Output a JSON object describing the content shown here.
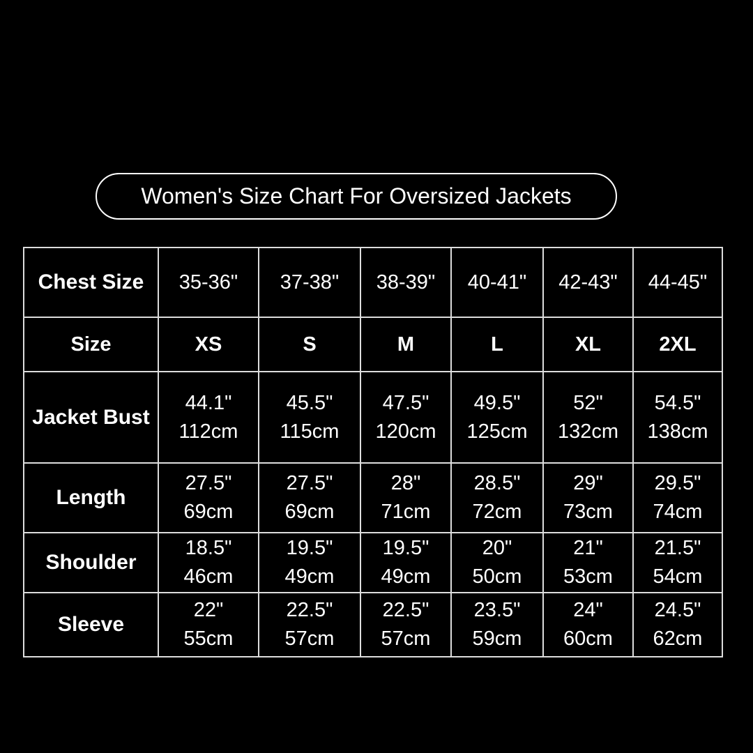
{
  "title": "Women's Size Chart For Oversized Jackets",
  "colors": {
    "background": "#000000",
    "text": "#ffffff",
    "grid": "#dddddd"
  },
  "table": {
    "chest_size": {
      "label": "Chest Size",
      "values": [
        "35-36\"",
        "37-38\"",
        "38-39\"",
        "40-41\"",
        "42-43\"",
        "44-45\""
      ]
    },
    "size": {
      "label": "Size",
      "values": [
        "XS",
        "S",
        "M",
        "L",
        "XL",
        "2XL"
      ]
    },
    "rows": [
      {
        "label": "Jacket Bust",
        "inches": [
          "44.1\"",
          "45.5\"",
          "47.5\"",
          "49.5\"",
          "52\"",
          "54.5\""
        ],
        "cm": [
          "112cm",
          "115cm",
          "120cm",
          "125cm",
          "132cm",
          "138cm"
        ]
      },
      {
        "label": "Length",
        "inches": [
          "27.5\"",
          "27.5\"",
          "28\"",
          "28.5\"",
          "29\"",
          "29.5\""
        ],
        "cm": [
          "69cm",
          "69cm",
          "71cm",
          "72cm",
          "73cm",
          "74cm"
        ]
      },
      {
        "label": "Shoulder",
        "inches": [
          "18.5\"",
          "19.5\"",
          "19.5\"",
          "20\"",
          "21\"",
          "21.5\""
        ],
        "cm": [
          "46cm",
          "49cm",
          "49cm",
          "50cm",
          "53cm",
          "54cm"
        ]
      },
      {
        "label": "Sleeve",
        "inches": [
          "22\"",
          "22.5\"",
          "22.5\"",
          "23.5\"",
          "24\"",
          "24.5\""
        ],
        "cm": [
          "55cm",
          "57cm",
          "57cm",
          "59cm",
          "60cm",
          "62cm"
        ]
      }
    ]
  }
}
